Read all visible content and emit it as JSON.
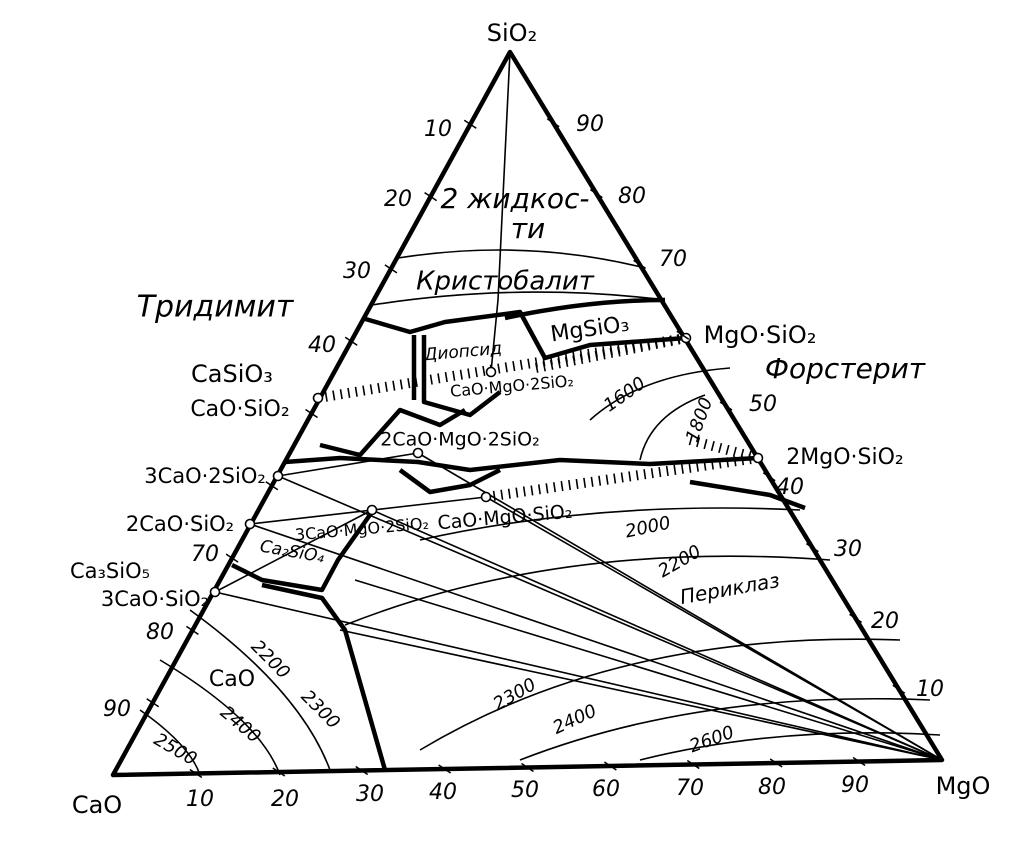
{
  "diagram": {
    "vertices": {
      "top": "SiO₂",
      "left": "CaO",
      "right": "MgO"
    },
    "axes": {
      "left": [
        10,
        20,
        30,
        40,
        70,
        80,
        90
      ],
      "right": [
        90,
        80,
        70,
        50,
        40,
        30,
        20,
        10
      ],
      "bottom": [
        10,
        20,
        30,
        40,
        50,
        60,
        70,
        80,
        90
      ]
    },
    "labels": [
      "2 жидкос-",
      "ти",
      "Кристобалит",
      "Тридимит",
      "MgSiO₃",
      "Диопсид",
      "MgO·SiO₂",
      "Форстерит",
      "CaSiO₃",
      "CaO·SiO₂",
      "CaO·MgO·2SiO₂",
      "2CaO·MgO·2SiO₂",
      "3CaO·2SiO₂",
      "2MgO·SiO₂",
      "3CaO·MgO·2SiO₂",
      "CaO·MgO·SiO₂",
      "2CaO·SiO₂",
      "Ca₂SiO₄",
      "Ca₃SiO₅",
      "3CaO·SiO₂",
      "Периклаз",
      "CaO"
    ],
    "isotherms": [
      "1600",
      "1800",
      "2000",
      "2200",
      "2200",
      "2300",
      "2300",
      "2400",
      "2400",
      "2500",
      "2600"
    ]
  }
}
